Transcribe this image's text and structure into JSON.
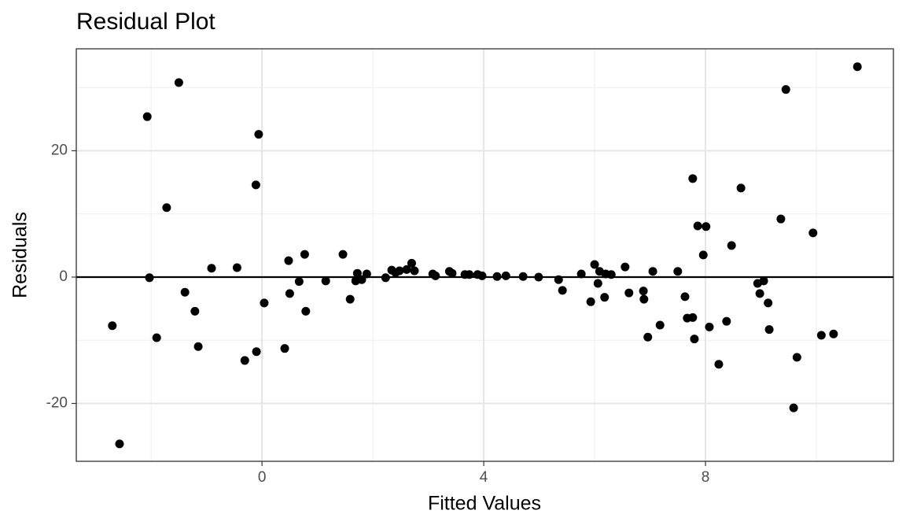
{
  "chart_data": {
    "type": "scatter",
    "title": "Residual Plot",
    "x_label": "Fitted Values",
    "y_label": "Residuals",
    "color": "#000000",
    "grid": true,
    "reference_line": 0,
    "xlim": [
      -3.35,
      11.39
    ],
    "ylim": [
      -29.16,
      36.14
    ],
    "xticks": [
      0,
      4,
      8
    ],
    "yticks": [
      -20,
      0,
      20
    ],
    "x": [
      -2.7,
      -2.57,
      -2.07,
      -2.03,
      -1.9,
      -1.72,
      -1.5,
      -1.39,
      -1.21,
      -1.15,
      -0.91,
      -0.45,
      -0.31,
      -0.11,
      -0.1,
      -0.06,
      0.04,
      0.41,
      0.48,
      0.5,
      0.67,
      0.77,
      0.79,
      1.15,
      1.46,
      1.59,
      1.69,
      1.72,
      1.8,
      1.89,
      2.23,
      2.34,
      2.41,
      2.48,
      2.61,
      2.7,
      2.75,
      3.08,
      3.13,
      3.38,
      3.43,
      3.66,
      3.74,
      3.89,
      3.97,
      4.24,
      4.4,
      4.71,
      4.99,
      5.35,
      5.42,
      5.76,
      5.93,
      6.0,
      6.06,
      6.09,
      6.18,
      6.2,
      6.3,
      6.55,
      6.62,
      6.88,
      6.89,
      6.96,
      7.05,
      7.18,
      7.5,
      7.63,
      7.67,
      7.77,
      7.77,
      7.8,
      7.86,
      7.96,
      8.01,
      8.07,
      8.24,
      8.38,
      8.47,
      8.64,
      8.94,
      8.98,
      9.05,
      9.13,
      9.15,
      9.36,
      9.45,
      9.59,
      9.65,
      9.94,
      10.09,
      10.31,
      10.74
    ],
    "y": [
      -7.7,
      -26.4,
      25.4,
      -0.1,
      -9.6,
      11.0,
      30.8,
      -2.4,
      -5.4,
      -11.0,
      1.4,
      1.5,
      -13.2,
      14.6,
      -11.8,
      22.6,
      -4.1,
      -11.3,
      2.6,
      -2.6,
      -0.7,
      3.6,
      -5.4,
      -0.6,
      3.6,
      -3.5,
      -0.6,
      0.6,
      -0.4,
      0.5,
      -0.1,
      1.1,
      0.7,
      1.0,
      1.2,
      2.2,
      1.0,
      0.5,
      0.2,
      0.9,
      0.6,
      0.4,
      0.4,
      0.4,
      0.2,
      0.1,
      0.2,
      0.1,
      0.0,
      -0.4,
      -2.1,
      0.5,
      -3.9,
      2.0,
      -1.0,
      0.9,
      -3.2,
      0.5,
      0.4,
      1.6,
      -2.5,
      -2.2,
      -3.5,
      -9.5,
      0.9,
      -7.6,
      0.9,
      -3.1,
      -6.5,
      15.6,
      -6.4,
      -9.8,
      8.1,
      3.5,
      8.0,
      -7.9,
      -13.8,
      -7.0,
      5.0,
      14.1,
      -1.0,
      -2.6,
      -0.6,
      -4.1,
      -8.3,
      9.2,
      29.7,
      -20.7,
      -12.7,
      7.0,
      -9.2,
      -9.0,
      33.3
    ]
  }
}
